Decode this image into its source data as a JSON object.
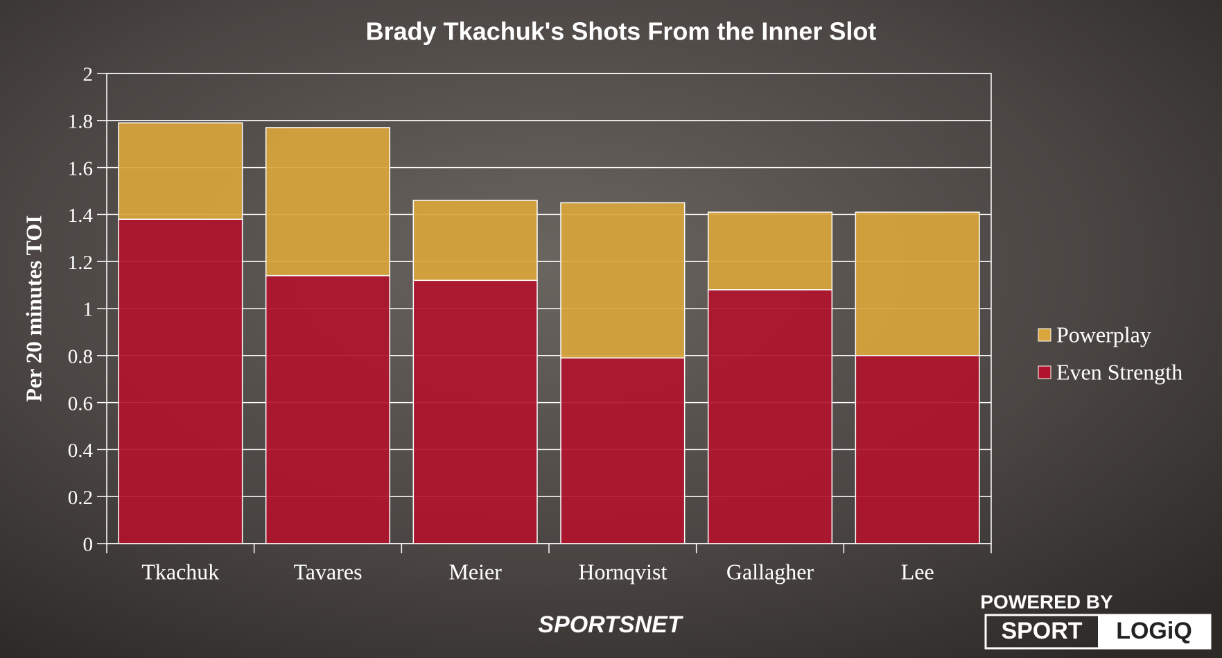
{
  "chart_data": {
    "type": "stacked_bar",
    "title": "Brady Tkachuk's Shots From the Inner Slot",
    "y_label": "Per 20 minutes TOI",
    "categories": [
      "Tkachuk",
      "Tavares",
      "Meier",
      "Hornqvist",
      "Gallagher",
      "Lee"
    ],
    "series": [
      {
        "name": "Even Strength",
        "color": "#b0142c",
        "values": [
          1.38,
          1.14,
          1.12,
          0.79,
          1.08,
          0.8
        ]
      },
      {
        "name": "Powerplay",
        "color": "#d9a53c",
        "values": [
          0.41,
          0.63,
          0.34,
          0.66,
          0.33,
          0.61
        ]
      }
    ],
    "ylim": [
      0,
      2
    ],
    "yticks": [
      0,
      0.2,
      0.4,
      0.6,
      0.8,
      1,
      1.2,
      1.4,
      1.6,
      1.8,
      2
    ],
    "grid": true,
    "legend": "right"
  },
  "branding": {
    "network": "SPORTSNET",
    "powered_by": "POWERED BY",
    "partner_left": "SPORT",
    "partner_right": "LOGiQ"
  }
}
